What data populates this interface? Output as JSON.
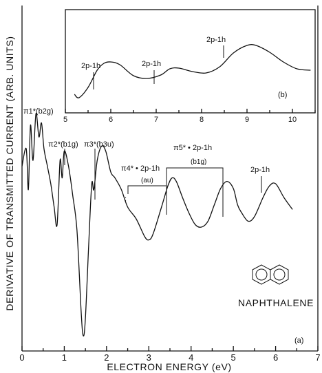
{
  "chart_data": [
    {
      "type": "line",
      "panel_label": "(a)",
      "xlabel": "ELECTRON ENERGY (eV)",
      "ylabel": "DERIVATIVE OF TRANSMITTED CURRENT (ARB. UNITS)",
      "xlim": [
        0,
        7
      ],
      "xticks": [
        "0",
        "1",
        "2",
        "3",
        "4",
        "5",
        "6",
        "7"
      ],
      "molecule_label": "NAPHTHALENE",
      "series": [
        {
          "x": [
            0.0,
            0.1,
            0.15,
            0.2,
            0.26,
            0.33,
            0.4,
            0.46,
            0.52,
            0.6,
            0.68,
            0.76,
            0.83,
            0.9,
            0.95,
            1.0,
            1.1,
            1.2,
            1.3,
            1.4,
            1.45,
            1.5,
            1.58,
            1.65,
            1.7,
            1.78,
            1.88,
            1.98,
            2.1,
            2.2,
            2.35,
            2.5,
            2.7,
            2.9,
            3.0,
            3.1,
            3.3,
            3.45,
            3.55,
            3.65,
            3.8,
            3.95,
            4.1,
            4.25,
            4.4,
            4.55,
            4.7,
            4.85,
            5.0,
            5.1,
            5.2,
            5.35,
            5.5,
            5.7,
            5.85,
            6.0,
            6.2,
            6.4
          ],
          "y": [
            55,
            70,
            35,
            90,
            60,
            100,
            80,
            92,
            70,
            55,
            40,
            20,
            5,
            60,
            45,
            68,
            55,
            30,
            0,
            -70,
            -90,
            -75,
            -10,
            40,
            35,
            60,
            72,
            68,
            50,
            45,
            35,
            20,
            10,
            -5,
            -8,
            -3,
            20,
            38,
            45,
            42,
            28,
            15,
            5,
            3,
            8,
            22,
            36,
            42,
            36,
            22,
            15,
            8,
            12,
            28,
            38,
            40,
            28,
            18
          ]
        }
      ],
      "annotations": [
        "π1*(b2g)",
        "π2*(b1g)",
        "π3*(b3u)",
        "π4* • 2p-1h",
        "(au)",
        "π5* • 2p-1h",
        "(b1g)",
        "2p-1h"
      ]
    },
    {
      "type": "line",
      "panel_label": "(b)",
      "xlim": [
        5,
        10.5
      ],
      "xticks": [
        "5",
        "6",
        "7",
        "8",
        "9",
        "10"
      ],
      "series": [
        {
          "x": [
            5.2,
            5.3,
            5.5,
            5.7,
            5.85,
            6.0,
            6.2,
            6.5,
            6.8,
            7.1,
            7.3,
            7.5,
            7.8,
            8.1,
            8.4,
            8.7,
            9.0,
            9.2,
            9.5,
            9.8,
            10.1,
            10.4
          ],
          "y": [
            1.5,
            1.0,
            2.5,
            5.0,
            6.0,
            6.2,
            5.8,
            4.2,
            3.8,
            4.3,
            5.2,
            5.3,
            4.8,
            4.6,
            5.5,
            7.5,
            8.6,
            8.6,
            7.6,
            6.2,
            5.2,
            5.0
          ]
        }
      ],
      "annotations": [
        "2p-1h",
        "2p-1h",
        "2p-1h"
      ]
    }
  ]
}
